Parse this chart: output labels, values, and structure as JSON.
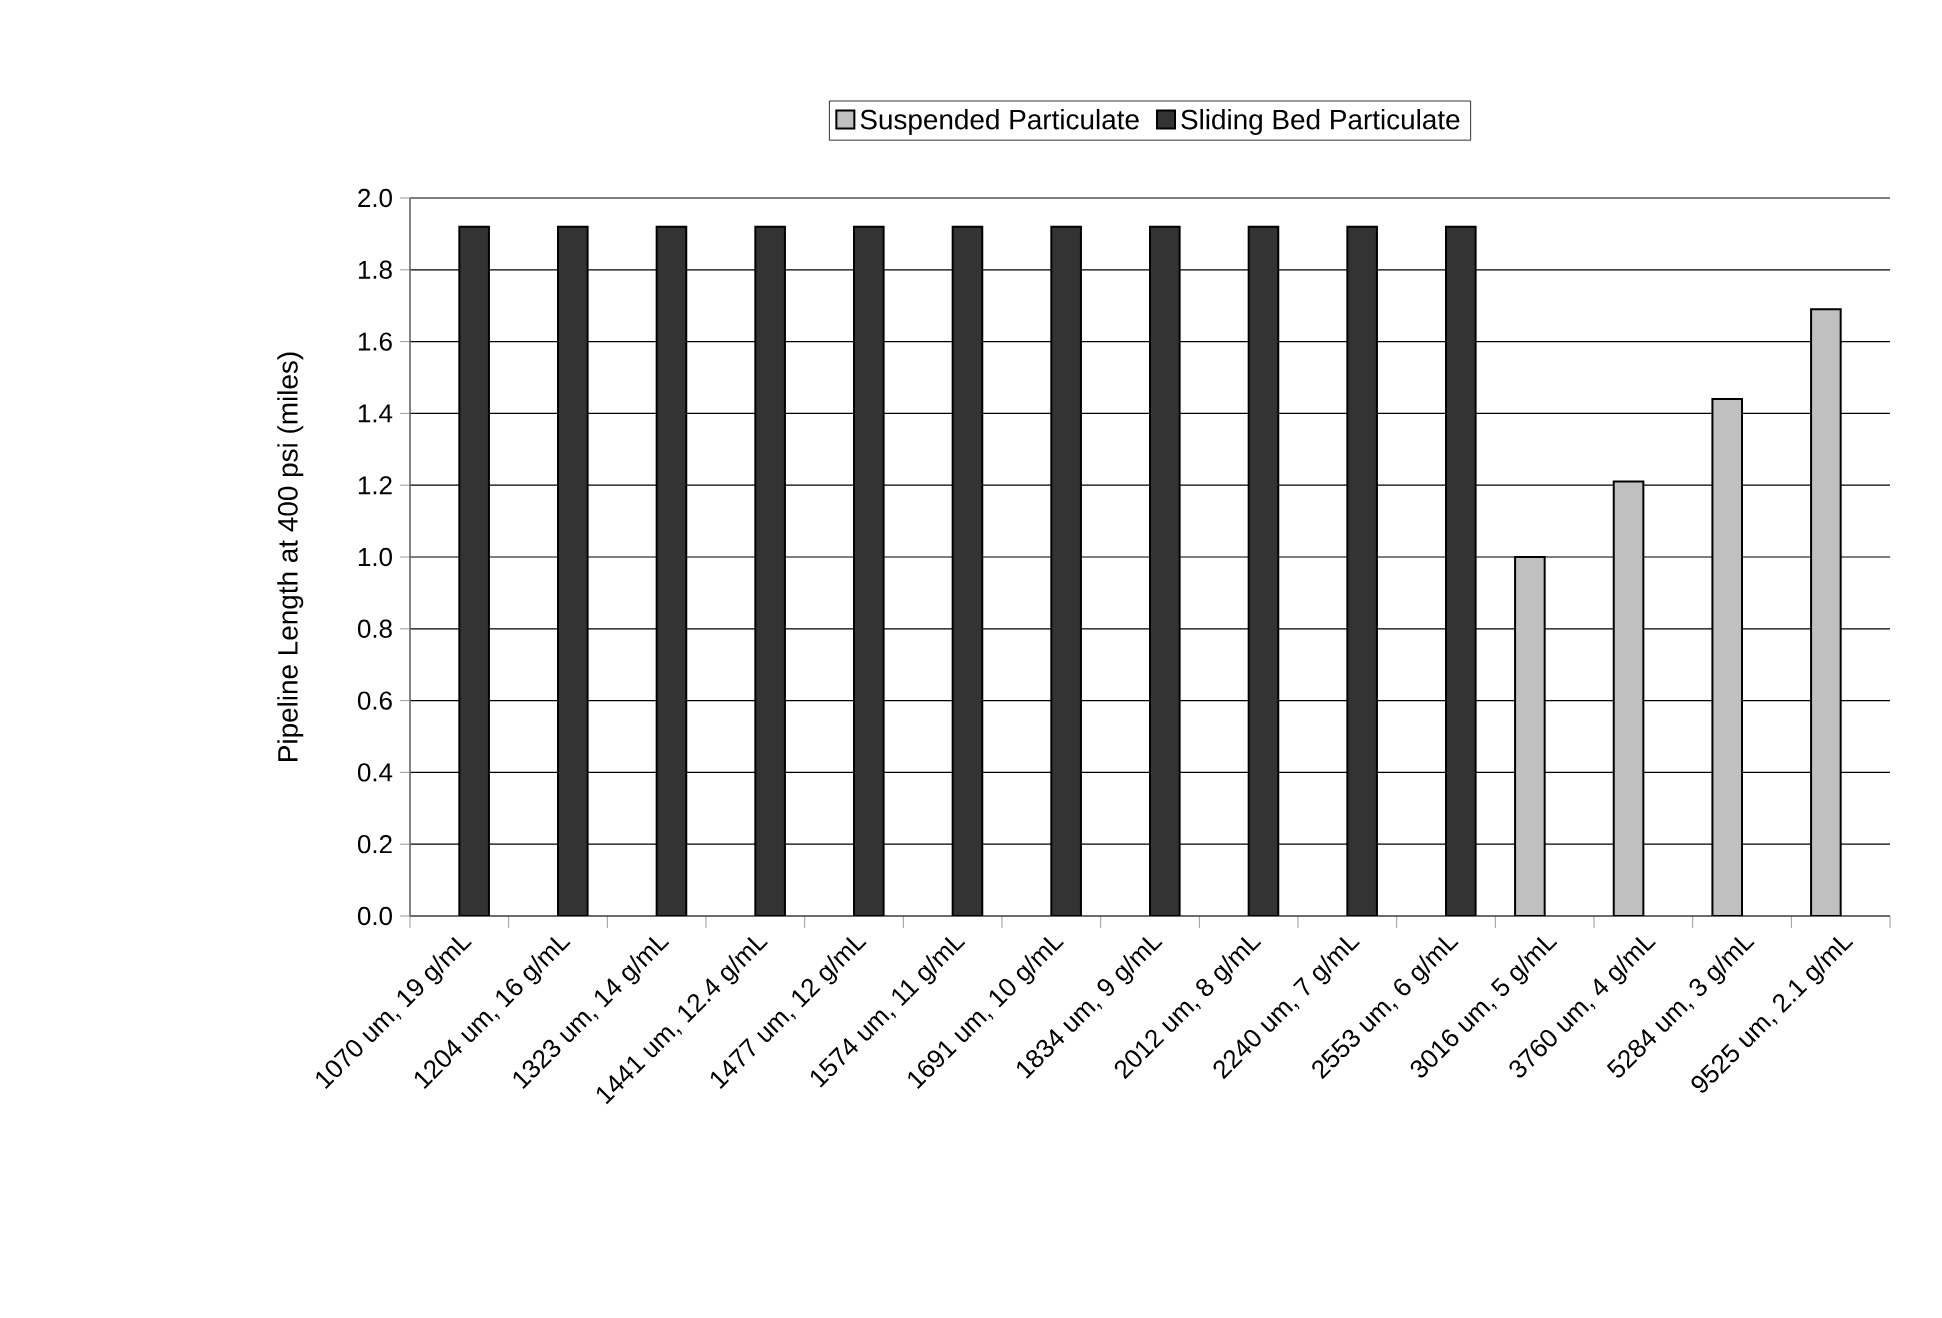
{
  "chart_data": {
    "type": "bar",
    "ylabel": "Pipeline Length at 400 psi (miles)",
    "categories": [
      "1070 um, 19 g/mL",
      "1204 um, 16 g/mL",
      "1323 um, 14 g/mL",
      "1441 um, 12.4 g/mL",
      "1477 um, 12 g/mL",
      "1574 um, 11 g/mL",
      "1691 um, 10 g/mL",
      "1834 um, 9 g/mL",
      "2012 um, 8 g/mL",
      "2240 um, 7 g/mL",
      "2553 um, 6 g/mL",
      "3016 um, 5 g/mL",
      "3760 um, 4 g/mL",
      "5284 um, 3 g/mL",
      "9525 um, 2.1 g/mL"
    ],
    "series": [
      {
        "name": "Suspended Particulate",
        "color": "#c0c0c0",
        "values": [
          null,
          null,
          null,
          null,
          null,
          null,
          null,
          null,
          null,
          null,
          null,
          1.0,
          1.21,
          1.44,
          1.69
        ]
      },
      {
        "name": "Sliding Bed Particulate",
        "color": "#333333",
        "values": [
          1.92,
          1.92,
          1.92,
          1.92,
          1.92,
          1.92,
          1.92,
          1.92,
          1.92,
          1.92,
          1.92,
          null,
          null,
          null,
          null
        ]
      }
    ],
    "ylim": [
      0,
      2.0
    ],
    "yticks": [
      {
        "value": 0,
        "label": "0.0"
      },
      {
        "value": 0.2,
        "label": "0.2"
      },
      {
        "value": 0.4,
        "label": "0.4"
      },
      {
        "value": 0.6,
        "label": "0.6"
      },
      {
        "value": 0.8,
        "label": "0.8"
      },
      {
        "value": 1.0,
        "label": "1.0"
      },
      {
        "value": 1.2,
        "label": "1.2"
      },
      {
        "value": 1.4,
        "label": "1.4"
      },
      {
        "value": 1.6,
        "label": "1.6"
      },
      {
        "value": 1.8,
        "label": "1.8"
      },
      {
        "value": 2.0,
        "label": "2.0"
      }
    ],
    "grid": "y",
    "legend": "top"
  }
}
